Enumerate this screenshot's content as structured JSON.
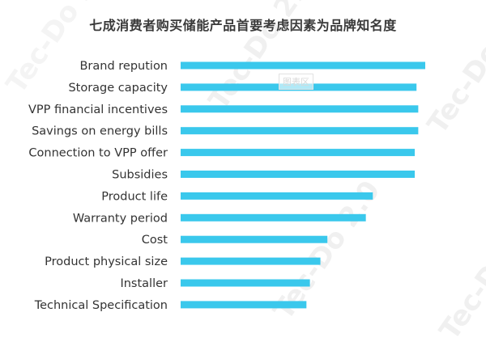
{
  "watermark": {
    "text_main": "Tec-Do 2.0",
    "badge": "图表区"
  },
  "chart_data": {
    "type": "bar",
    "orientation": "horizontal",
    "title": "七成消费者购买储能产品首要考虑因素为品牌知名度",
    "categories": [
      "Brand repution",
      "Storage capacity",
      "VPP financial incentives",
      "Savings on energy bills",
      "Connection to VPP offer",
      "Subsidies",
      "Product life",
      "Warranty period",
      "Cost",
      "Product physical size",
      "Installer",
      "Technical Specification"
    ],
    "values": [
      70,
      67.5,
      68,
      68,
      67,
      67,
      55,
      53,
      42,
      40,
      37,
      36
    ],
    "xlim": [
      0,
      70
    ],
    "bar_color": "#3ac8ec",
    "grid": false,
    "legend": "none"
  }
}
